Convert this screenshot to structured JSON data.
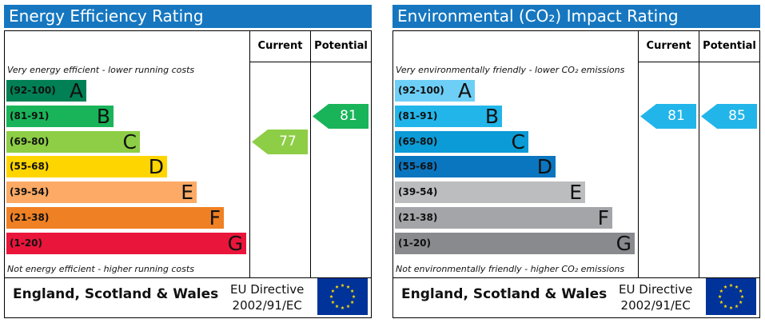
{
  "chart_data": [
    {
      "type": "bar",
      "title": "Energy Efficiency Rating",
      "column_headers": [
        "Current",
        "Potential"
      ],
      "top_note": "Very energy efficient - lower running costs",
      "bottom_note": "Not energy efficient - higher running costs",
      "bands": [
        {
          "range": "(92-100)",
          "letter": "A",
          "color": "#008054"
        },
        {
          "range": "(81-91)",
          "letter": "B",
          "color": "#19b459"
        },
        {
          "range": "(69-80)",
          "letter": "C",
          "color": "#8dce46"
        },
        {
          "range": "(55-68)",
          "letter": "D",
          "color": "#ffd500"
        },
        {
          "range": "(39-54)",
          "letter": "E",
          "color": "#fcaa65"
        },
        {
          "range": "(21-38)",
          "letter": "F",
          "color": "#ef8023"
        },
        {
          "range": "(1-20)",
          "letter": "G",
          "color": "#e9153b"
        }
      ],
      "current": {
        "value": 77,
        "band": "C",
        "color": "#8dce46"
      },
      "potential": {
        "value": 81,
        "band": "B",
        "color": "#19b459"
      },
      "footer": {
        "region": "England, Scotland & Wales",
        "directive_line1": "EU Directive",
        "directive_line2": "2002/91/EC"
      }
    },
    {
      "type": "bar",
      "title": "Environmental (CO₂) Impact Rating",
      "column_headers": [
        "Current",
        "Potential"
      ],
      "top_note": "Very environmentally friendly - lower CO₂ emissions",
      "bottom_note": "Not environmentally friendly - higher CO₂ emissions",
      "bands": [
        {
          "range": "(92-100)",
          "letter": "A",
          "color": "#6ecff6"
        },
        {
          "range": "(81-91)",
          "letter": "B",
          "color": "#22b5ea"
        },
        {
          "range": "(69-80)",
          "letter": "C",
          "color": "#0b9bd6"
        },
        {
          "range": "(55-68)",
          "letter": "D",
          "color": "#0b76c0"
        },
        {
          "range": "(39-54)",
          "letter": "E",
          "color": "#bcbdbf"
        },
        {
          "range": "(21-38)",
          "letter": "F",
          "color": "#a3a5a8"
        },
        {
          "range": "(1-20)",
          "letter": "G",
          "color": "#888a8d"
        }
      ],
      "current": {
        "value": 81,
        "band": "B",
        "color": "#22b5ea"
      },
      "potential": {
        "value": 85,
        "band": "B",
        "color": "#22b5ea"
      },
      "footer": {
        "region": "England, Scotland & Wales",
        "directive_line1": "EU Directive",
        "directive_line2": "2002/91/EC"
      }
    }
  ]
}
